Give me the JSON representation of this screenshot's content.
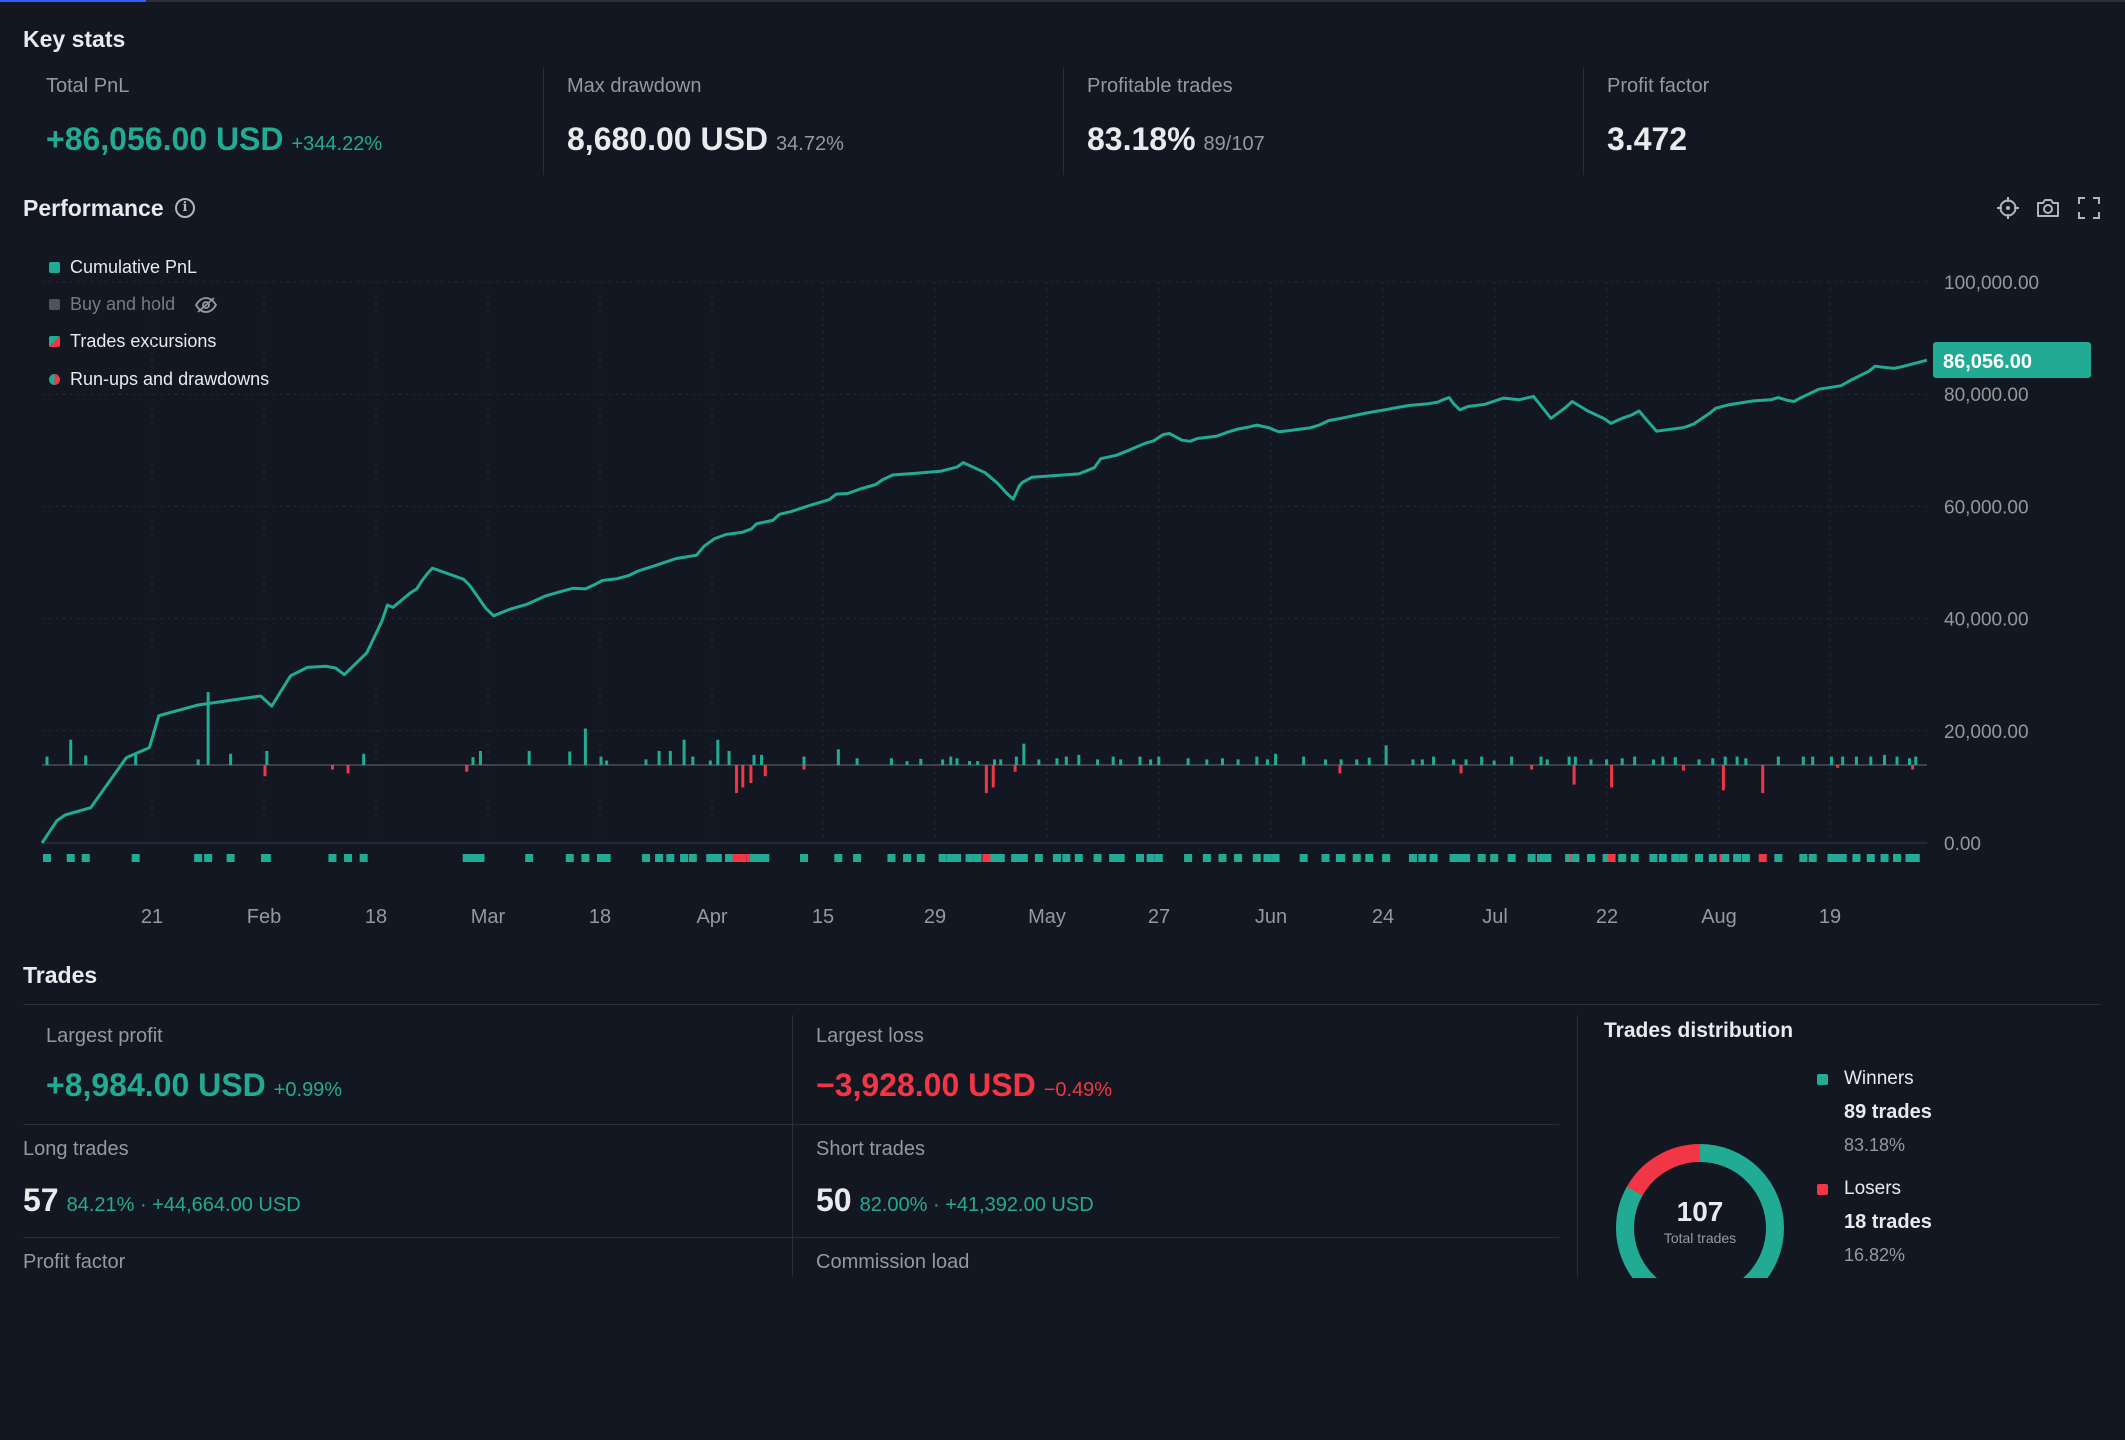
{
  "key_stats": {
    "title": "Key stats",
    "items": [
      {
        "label": "Total PnL",
        "value": "+86,056.00 USD",
        "sub": "+344.22%"
      },
      {
        "label": "Max drawdown",
        "value": "8,680.00 USD",
        "sub": "34.72%"
      },
      {
        "label": "Profitable trades",
        "value": "83.18%",
        "sub": "89/107"
      },
      {
        "label": "Profit factor",
        "value": "3.472",
        "sub": ""
      }
    ]
  },
  "performance": {
    "title": "Performance",
    "info_icon": "info-icon",
    "tools": [
      "crosshair-icon",
      "camera-icon",
      "fullscreen-icon"
    ],
    "legend": [
      {
        "label": "Cumulative PnL",
        "color": "#22ab94"
      },
      {
        "label": "Buy and hold",
        "color": "#50535e",
        "icon": "eye-off-icon"
      },
      {
        "label": "Trades excursions",
        "color": "#22ab94",
        "color2": "#f23645"
      },
      {
        "label": "Run-ups and drawdowns",
        "color": "#22ab94",
        "color2": "#f23645"
      }
    ],
    "last_value_label": "86,056.00"
  },
  "chart_data": {
    "type": "line",
    "ylim": [
      0,
      100000
    ],
    "y_ticks": [
      "100,000.00",
      "80,000.00",
      "60,000.00",
      "40,000.00",
      "20,000.00",
      "0.00"
    ],
    "x_ticks": [
      "21",
      "Feb",
      "18",
      "Mar",
      "18",
      "Apr",
      "15",
      "29",
      "May",
      "27",
      "Jun",
      "24",
      "Jul",
      "22",
      "Aug",
      "19"
    ],
    "grid": true,
    "series": [
      {
        "name": "Cumulative PnL",
        "color": "#22ab94",
        "points": [
          [
            0,
            0
          ],
          [
            2.4,
            4000
          ],
          [
            3.7,
            5000
          ],
          [
            7.8,
            6300
          ],
          [
            13.5,
            15200
          ],
          [
            17.2,
            17000
          ],
          [
            18.7,
            22700
          ],
          [
            25,
            24600
          ],
          [
            35,
            26200
          ],
          [
            36.8,
            24400
          ],
          [
            38,
            26600
          ],
          [
            39.8,
            29800
          ],
          [
            42.5,
            31300
          ],
          [
            45.5,
            31500
          ],
          [
            47,
            31200
          ],
          [
            48.4,
            30000
          ],
          [
            52,
            33900
          ],
          [
            54.4,
            39500
          ],
          [
            55.3,
            42400
          ],
          [
            56.2,
            42000
          ],
          [
            59,
            44600
          ],
          [
            60,
            45300
          ],
          [
            60.8,
            46700
          ],
          [
            61.7,
            48000
          ],
          [
            62.5,
            49000
          ],
          [
            67.5,
            47000
          ],
          [
            68.5,
            45900
          ],
          [
            71,
            41900
          ],
          [
            72.3,
            40500
          ],
          [
            75,
            41700
          ],
          [
            77.5,
            42500
          ],
          [
            80.5,
            44000
          ],
          [
            83,
            44800
          ],
          [
            85,
            45400
          ],
          [
            87,
            45300
          ],
          [
            88.4,
            46000
          ],
          [
            89.7,
            46800
          ],
          [
            92,
            47100
          ],
          [
            94,
            47700
          ],
          [
            95.5,
            48500
          ],
          [
            98,
            49400
          ],
          [
            101.5,
            50700
          ],
          [
            104.8,
            51300
          ],
          [
            106,
            52900
          ],
          [
            107.6,
            54200
          ],
          [
            109.5,
            55000
          ],
          [
            112.2,
            55400
          ],
          [
            113.6,
            56000
          ],
          [
            114.4,
            56900
          ],
          [
            117,
            57500
          ],
          [
            118.1,
            58600
          ],
          [
            120,
            59100
          ],
          [
            123,
            60200
          ],
          [
            126,
            61200
          ],
          [
            127.2,
            62200
          ],
          [
            129,
            62300
          ],
          [
            131,
            63100
          ],
          [
            133.5,
            63900
          ],
          [
            134.5,
            64700
          ],
          [
            136.2,
            65600
          ],
          [
            140,
            65900
          ],
          [
            144,
            66300
          ],
          [
            146.5,
            67000
          ],
          [
            147.5,
            67800
          ],
          [
            151,
            66000
          ],
          [
            153,
            64100
          ],
          [
            154.5,
            62300
          ],
          [
            155.5,
            61300
          ],
          [
            156.5,
            63700
          ],
          [
            157,
            64300
          ],
          [
            158.5,
            65200
          ],
          [
            166,
            65800
          ],
          [
            168.5,
            66900
          ],
          [
            169.5,
            68500
          ],
          [
            172,
            69100
          ],
          [
            174,
            70000
          ],
          [
            176.5,
            71200
          ],
          [
            178,
            71700
          ],
          [
            179.5,
            72800
          ],
          [
            180.5,
            73000
          ],
          [
            182.5,
            71800
          ],
          [
            183.8,
            71600
          ],
          [
            185,
            72100
          ],
          [
            188,
            72500
          ],
          [
            190,
            73300
          ],
          [
            191.5,
            73800
          ],
          [
            193,
            74100
          ],
          [
            194.5,
            74500
          ],
          [
            196.5,
            74000
          ],
          [
            198,
            73300
          ],
          [
            199.5,
            73500
          ],
          [
            203,
            74000
          ],
          [
            204.5,
            74500
          ],
          [
            206,
            75300
          ],
          [
            208,
            75700
          ],
          [
            211,
            76400
          ],
          [
            212.8,
            76800
          ],
          [
            215,
            77200
          ],
          [
            216.8,
            77600
          ],
          [
            219,
            78000
          ],
          [
            222,
            78300
          ],
          [
            223.5,
            78600
          ],
          [
            224.3,
            79000
          ],
          [
            225.3,
            79400
          ],
          [
            226,
            78300
          ],
          [
            227,
            77200
          ],
          [
            228.3,
            77800
          ],
          [
            231,
            78200
          ],
          [
            234,
            79300
          ],
          [
            236.5,
            79000
          ],
          [
            238.8,
            79600
          ],
          [
            241.6,
            75700
          ],
          [
            243.8,
            77500
          ],
          [
            245,
            78700
          ],
          [
            247.5,
            77000
          ],
          [
            250,
            75700
          ],
          [
            251.2,
            74800
          ],
          [
            253,
            75700
          ],
          [
            254.5,
            76300
          ],
          [
            255.7,
            77000
          ],
          [
            257,
            75300
          ],
          [
            258.5,
            73400
          ],
          [
            262.5,
            74000
          ],
          [
            263.3,
            74200
          ],
          [
            264.5,
            74700
          ],
          [
            267,
            76600
          ],
          [
            268,
            77500
          ],
          [
            270,
            78100
          ],
          [
            274,
            78800
          ],
          [
            276.8,
            79000
          ],
          [
            278,
            79400
          ],
          [
            279.5,
            78900
          ],
          [
            280.5,
            78700
          ],
          [
            281.5,
            79300
          ],
          [
            284.5,
            80900
          ],
          [
            288,
            81500
          ],
          [
            289.8,
            82600
          ],
          [
            292.5,
            84100
          ],
          [
            293.5,
            85000
          ],
          [
            294.8,
            84800
          ],
          [
            296.5,
            84600
          ],
          [
            297.8,
            84900
          ],
          [
            301.8,
            86056
          ]
        ]
      },
      {
        "name": "Trades excursions",
        "runup_color": "#22ab94",
        "drawdown_color": "#f23645",
        "runups": [
          [
            0.8,
            1500
          ],
          [
            4.6,
            4500
          ],
          [
            7,
            1700
          ],
          [
            15,
            2000
          ],
          [
            25,
            1000
          ],
          [
            26.6,
            13000
          ],
          [
            30.2,
            2000
          ],
          [
            36,
            2500
          ],
          [
            51.5,
            2000
          ],
          [
            69,
            1400
          ],
          [
            70.2,
            2500
          ],
          [
            78,
            2500
          ],
          [
            84.5,
            2400
          ],
          [
            87,
            6500
          ],
          [
            89.5,
            1500
          ],
          [
            90.4,
            800
          ],
          [
            96.7,
            1000
          ],
          [
            98.8,
            2500
          ],
          [
            100.6,
            2500
          ],
          [
            102.8,
            4500
          ],
          [
            104.2,
            1500
          ],
          [
            107,
            800
          ],
          [
            108.2,
            4500
          ],
          [
            110,
            2500
          ],
          [
            114,
            1800
          ],
          [
            115.2,
            1800
          ],
          [
            122,
            1500
          ],
          [
            127.5,
            2800
          ],
          [
            130.5,
            1200
          ],
          [
            136,
            1200
          ],
          [
            138.5,
            700
          ],
          [
            140.7,
            1100
          ],
          [
            144.2,
            1000
          ],
          [
            145.5,
            1500
          ],
          [
            146.5,
            1200
          ],
          [
            148.5,
            700
          ],
          [
            149.8,
            700
          ],
          [
            152.5,
            1000
          ],
          [
            153.5,
            1000
          ],
          [
            156,
            1500
          ],
          [
            157.2,
            3800
          ],
          [
            159.6,
            1000
          ],
          [
            162.5,
            1200
          ],
          [
            164,
            1500
          ],
          [
            166,
            1800
          ],
          [
            169,
            1000
          ],
          [
            171.5,
            1500
          ],
          [
            172.7,
            1000
          ],
          [
            175.8,
            1500
          ],
          [
            177.5,
            1000
          ],
          [
            178.8,
            1500
          ],
          [
            183.5,
            1200
          ],
          [
            186.5,
            1000
          ],
          [
            189,
            1200
          ],
          [
            191.5,
            1000
          ],
          [
            194.5,
            1500
          ],
          [
            196.2,
            1000
          ],
          [
            197.5,
            2000
          ],
          [
            202,
            1500
          ],
          [
            205.5,
            1000
          ],
          [
            208,
            1000
          ],
          [
            210.5,
            1000
          ],
          [
            212.5,
            1300
          ],
          [
            215.2,
            3500
          ],
          [
            219.5,
            1000
          ],
          [
            221,
            1000
          ],
          [
            222.8,
            1500
          ],
          [
            226,
            1000
          ],
          [
            228,
            1000
          ],
          [
            230.5,
            1500
          ],
          [
            232.5,
            800
          ],
          [
            235.3,
            1500
          ],
          [
            240,
            1500
          ],
          [
            241,
            1000
          ],
          [
            244.5,
            1500
          ],
          [
            245.5,
            1500
          ],
          [
            248,
            1000
          ],
          [
            250.5,
            1000
          ],
          [
            253,
            1200
          ],
          [
            255,
            1500
          ],
          [
            258,
            1000
          ],
          [
            259.5,
            1500
          ],
          [
            261.5,
            1400
          ],
          [
            265.3,
            1000
          ],
          [
            267.5,
            1200
          ],
          [
            269.5,
            1500
          ],
          [
            271.4,
            1500
          ],
          [
            272.8,
            1200
          ],
          [
            278,
            1500
          ],
          [
            282,
            1500
          ],
          [
            283.5,
            1500
          ],
          [
            286.5,
            1500
          ],
          [
            288.3,
            1500
          ],
          [
            290.5,
            1500
          ],
          [
            292.8,
            1500
          ],
          [
            295,
            1800
          ],
          [
            297,
            1500
          ],
          [
            299,
            1200
          ],
          [
            300,
            1500
          ]
        ],
        "drawdowns": [
          [
            35.7,
            2000
          ],
          [
            46.5,
            800
          ],
          [
            49,
            1500
          ],
          [
            68,
            1200
          ],
          [
            111.2,
            5000
          ],
          [
            112.2,
            4000
          ],
          [
            113.5,
            3200
          ],
          [
            115.8,
            2000
          ],
          [
            122,
            800
          ],
          [
            151.2,
            5000
          ],
          [
            152.3,
            4000
          ],
          [
            155.8,
            1200
          ],
          [
            207.8,
            1500
          ],
          [
            227.2,
            1500
          ],
          [
            238.5,
            800
          ],
          [
            245.3,
            3500
          ],
          [
            251.3,
            4000
          ],
          [
            262.8,
            1000
          ],
          [
            269.2,
            4500
          ],
          [
            275.5,
            5000
          ],
          [
            287.5,
            500
          ],
          [
            299.5,
            800
          ]
        ]
      }
    ]
  },
  "trades": {
    "title": "Trades",
    "largest_profit": {
      "label": "Largest profit",
      "value": "+8,984.00 USD",
      "sub": "+0.99%"
    },
    "largest_loss": {
      "label": "Largest loss",
      "value": "−3,928.00 USD",
      "sub": "−0.49%"
    },
    "long_trades": {
      "label": "Long trades",
      "value": "57",
      "sub": "84.21% · +44,664.00 USD"
    },
    "short_trades": {
      "label": "Short trades",
      "value": "50",
      "sub": "82.00% · +41,392.00 USD"
    },
    "profit_factor_label": "Profit factor",
    "commission_load_label": "Commission load"
  },
  "distribution": {
    "title": "Trades distribution",
    "total": "107",
    "total_label": "Total trades",
    "winners": {
      "label": "Winners",
      "count": "89 trades",
      "pct": "83.18%",
      "color": "#22ab94",
      "fraction": 0.8318
    },
    "losers": {
      "label": "Losers",
      "count": "18 trades",
      "pct": "16.82%",
      "color": "#f23645",
      "fraction": 0.1682
    }
  }
}
